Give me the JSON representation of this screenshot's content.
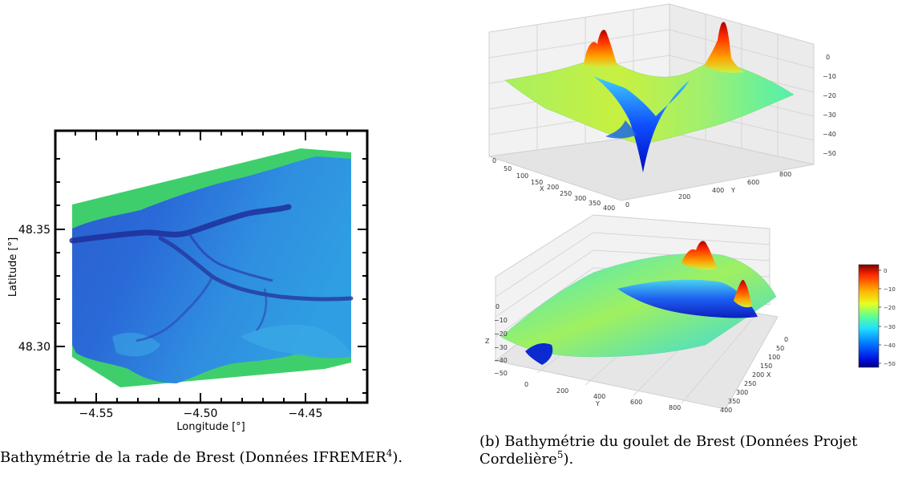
{
  "colors": {
    "land": "#3ecf6c",
    "sea_deep": "#1f2f9a",
    "sea_mid": "#2a6fd6",
    "sea_shallow": "#2f9ee0",
    "frame": "#000000"
  },
  "figure_a": {
    "caption_prefix": "Bathymétrie de la rade de Brest (Données IFREMER",
    "caption_sup": "4",
    "caption_suffix": ").",
    "chart_data": {
      "type": "heatmap",
      "xlabel": "Longitude [°]",
      "ylabel": "Latitude [°]",
      "x_ticks": [
        "−4.55",
        "−4.50",
        "−4.45"
      ],
      "y_ticks": [
        "48.35",
        "48.30"
      ],
      "xlim": [
        -4.565,
        -4.435
      ],
      "ylim": [
        48.277,
        48.385
      ]
    }
  },
  "figure_b": {
    "caption_line1": "(b) Bathymétrie du goulet de Brest (Données Projet",
    "caption_line2_prefix": "Cordelière",
    "caption_sup": "5",
    "caption_suffix": ").",
    "chart_data": [
      {
        "type": "surface3d",
        "x_axis_label": "X",
        "y_axis_label": "Y",
        "x_ticks": [
          "0",
          "50",
          "100",
          "150",
          "200",
          "250",
          "300",
          "350",
          "400"
        ],
        "y_ticks": [
          "0",
          "200",
          "400",
          "600",
          "800"
        ],
        "z_ticks": [
          "0",
          "−10",
          "−20",
          "−30",
          "−40",
          "−50"
        ]
      },
      {
        "type": "surface3d",
        "x_axis_label": "X",
        "y_axis_label": "Y",
        "z_axis_label": "Z",
        "x_ticks": [
          "0",
          "50",
          "100",
          "150",
          "200",
          "250",
          "300",
          "350",
          "400"
        ],
        "y_ticks": [
          "0",
          "200",
          "400",
          "600",
          "800"
        ],
        "z_ticks": [
          "0",
          "−10",
          "−20",
          "−30",
          "−40",
          "−50"
        ]
      }
    ],
    "colorbar": {
      "ticks": [
        "0",
        "−10",
        "−20",
        "−30",
        "−40",
        "−50"
      ],
      "range": [
        -52,
        3
      ]
    }
  }
}
